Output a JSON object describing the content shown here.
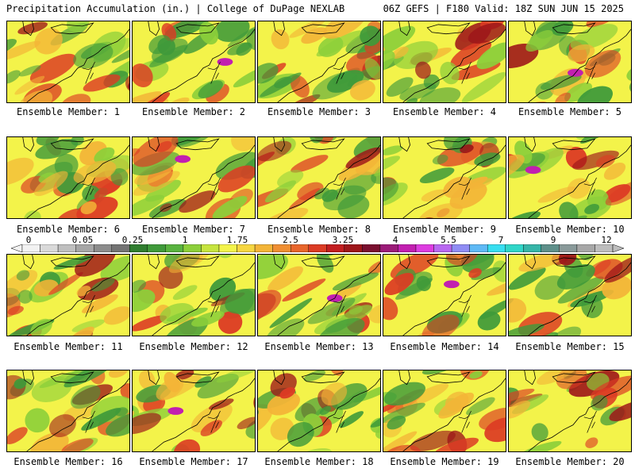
{
  "header": {
    "left": "Precipitation Accumulation (in.) | College of DuPage NEXLAB",
    "right": "06Z GEFS | F180 Valid: 18Z SUN JUN 15 2025"
  },
  "colorbar": {
    "labels": [
      "0",
      "0.05",
      "0.25",
      "1",
      "1.75",
      "2.5",
      "3.25",
      "4",
      "5.5",
      "7",
      "9",
      "12"
    ],
    "colors": [
      "#f2f2f2",
      "#d9d9d9",
      "#bfbfbf",
      "#a6a6a6",
      "#8c8c8c",
      "#737373",
      "#2f7d2f",
      "#3f9a3a",
      "#58b33f",
      "#8ccf3a",
      "#c6e43e",
      "#f3f34a",
      "#f6d640",
      "#f3b437",
      "#ef8e32",
      "#e8652b",
      "#dc3b24",
      "#c21d1f",
      "#9d1519",
      "#7a0f2f",
      "#9b1b78",
      "#c21fb0",
      "#dd3ce0",
      "#b867f0",
      "#8f8cf4",
      "#5eb9f5",
      "#37def0",
      "#2fd6c8",
      "#35b5a8",
      "#5e8f8a",
      "#8a9a9a",
      "#a7a7a7",
      "#bdbdbd"
    ]
  },
  "members": [
    {
      "label": "Ensemble Member: 1"
    },
    {
      "label": "Ensemble Member: 2"
    },
    {
      "label": "Ensemble Member: 3"
    },
    {
      "label": "Ensemble Member: 4"
    },
    {
      "label": "Ensemble Member: 5"
    },
    {
      "label": "Ensemble Member: 6"
    },
    {
      "label": "Ensemble Member: 7"
    },
    {
      "label": "Ensemble Member: 8"
    },
    {
      "label": "Ensemble Member: 9"
    },
    {
      "label": "Ensemble Member: 10"
    },
    {
      "label": "Ensemble Member: 11"
    },
    {
      "label": "Ensemble Member: 12"
    },
    {
      "label": "Ensemble Member: 13"
    },
    {
      "label": "Ensemble Member: 14"
    },
    {
      "label": "Ensemble Member: 15"
    },
    {
      "label": "Ensemble Member: 16"
    },
    {
      "label": "Ensemble Member: 17"
    },
    {
      "label": "Ensemble Member: 18"
    },
    {
      "label": "Ensemble Member: 19"
    },
    {
      "label": "Ensemble Member: 20"
    }
  ],
  "palette": {
    "green": "#3f9a3a",
    "light_green": "#8ccf3a",
    "yellow": "#f3f34a",
    "orange": "#f3b437",
    "red": "#dc3b24",
    "dark_red": "#9d1519",
    "magenta": "#c21fb0"
  }
}
